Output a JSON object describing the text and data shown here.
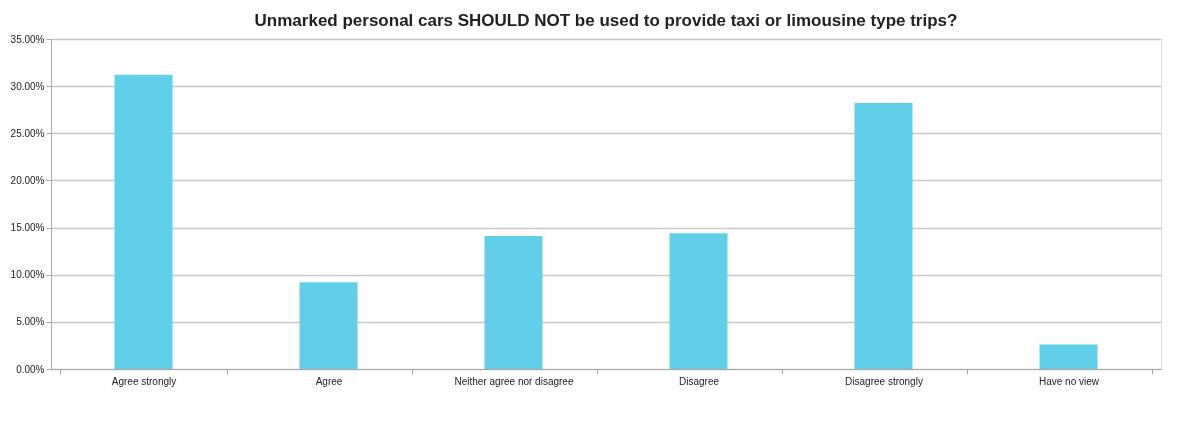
{
  "chart_data": {
    "type": "bar",
    "title": "Unmarked personal cars SHOULD NOT be used to provide taxi or limousine type trips?",
    "categories": [
      "Agree strongly",
      "Agree",
      "Neither agree nor disagree",
      "Disagree",
      "Disagree strongly",
      "Have no view"
    ],
    "values": [
      31.2,
      9.2,
      14.1,
      14.4,
      28.2,
      2.6
    ],
    "color": "#62cfea",
    "ylim": [
      0,
      35
    ],
    "yticks": [
      {
        "value": 0,
        "label": "0.00%"
      },
      {
        "value": 5,
        "label": "5.00%"
      },
      {
        "value": 10,
        "label": "10.00%"
      },
      {
        "value": 15,
        "label": "15.00%"
      },
      {
        "value": 20,
        "label": "20.00%"
      },
      {
        "value": 25,
        "label": "25.00%"
      },
      {
        "value": 30,
        "label": "30.00%"
      },
      {
        "value": 35,
        "label": "35.00%"
      }
    ],
    "grid": "y"
  }
}
